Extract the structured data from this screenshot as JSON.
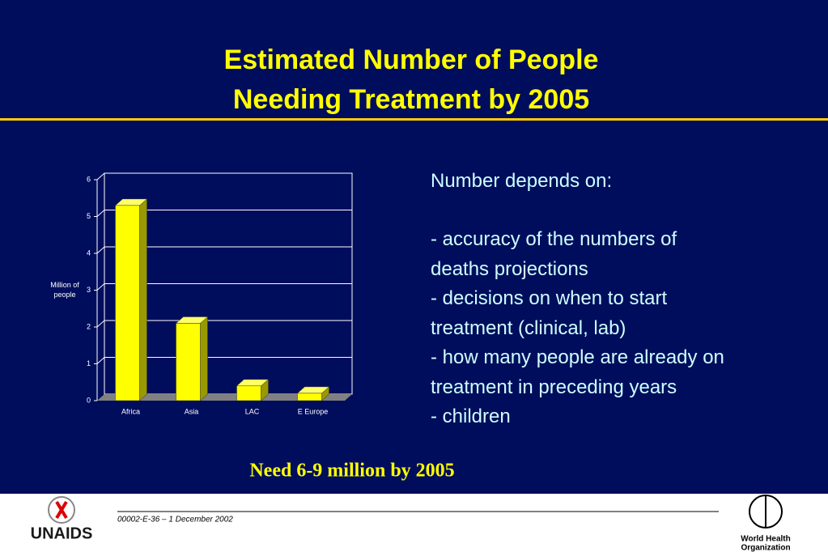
{
  "title": [
    "Estimated Number of People",
    "Needing Treatment by 2005"
  ],
  "chart_data": {
    "type": "bar3d",
    "ylabel": "Million of people",
    "categories": [
      "Africa",
      "Asia",
      "LAC",
      "E Europe"
    ],
    "values": [
      5.3,
      2.1,
      0.4,
      0.2
    ],
    "color": "#ffff00",
    "ylim": [
      0,
      6
    ],
    "yticks": [
      0,
      1,
      2,
      3,
      4,
      5,
      6
    ],
    "grid": true
  },
  "notes": {
    "heading": "Number depends on:",
    "lines": [
      "- accuracy of the numbers of",
      "deaths projections",
      "- decisions on when to start",
      "treatment (clinical, lab)",
      "- how many people are already on",
      "treatment in preceding years",
      "- children"
    ]
  },
  "callout": "Need 6-9 million by 2005",
  "footer": {
    "code": "00002-E-36 – 1 December 2002",
    "left_logo": "UNAIDS",
    "right_logo": [
      "World Health",
      "Organization"
    ]
  }
}
